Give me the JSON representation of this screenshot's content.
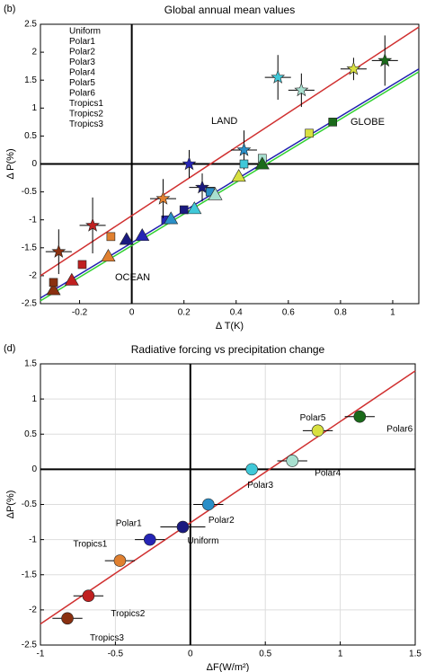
{
  "chart_data": [
    {
      "type": "scatter",
      "panel": "(b)",
      "title": "Global annual mean values",
      "xlabel": "Δ T(K)",
      "ylabel": "Δ P(%)",
      "xlim": [
        -0.35,
        1.1
      ],
      "ylim": [
        -2.5,
        2.5
      ],
      "xticks": [
        -0.2,
        0,
        0.2,
        0.4,
        0.6,
        0.8,
        1
      ],
      "yticks": [
        -2.5,
        -2,
        -1.5,
        -1,
        -0.5,
        0,
        0.5,
        1,
        1.5,
        2,
        2.5
      ],
      "grid": false,
      "legend": "upper left",
      "markers": [
        "star",
        "triangle",
        "square"
      ],
      "series": [
        {
          "name": "Uniform",
          "color": "#1a1a80",
          "x": [
            0.27,
            -0.02,
            0.2
          ],
          "values": [
            -0.42,
            -1.35,
            -0.82
          ],
          "xerr": [
            0.05,
            null,
            null
          ],
          "yerr": [
            0.25,
            null,
            null
          ]
        },
        {
          "name": "Polar1",
          "color": "#2525b5",
          "x": [
            0.22,
            0.04,
            0.13
          ],
          "values": [
            0,
            -1.28,
            -1
          ],
          "xerr": [
            0.05,
            null,
            null
          ],
          "yerr": [
            0.25,
            null,
            null
          ]
        },
        {
          "name": "Polar2",
          "color": "#2a8fc8",
          "x": [
            0.43,
            0.15,
            0.3
          ],
          "values": [
            0.25,
            -0.98,
            -0.5
          ],
          "xerr": [
            0.05,
            null,
            null
          ],
          "yerr": [
            0.35,
            null,
            null
          ]
        },
        {
          "name": "Polar3",
          "color": "#40c8d8",
          "x": [
            0.56,
            0.24,
            0.43
          ],
          "values": [
            1.55,
            -0.8,
            0
          ],
          "xerr": [
            0.05,
            null,
            null
          ],
          "yerr": [
            0.4,
            null,
            null
          ]
        },
        {
          "name": "Polar4",
          "color": "#a8e0d0",
          "x": [
            0.65,
            0.32,
            0.5
          ],
          "values": [
            1.32,
            -0.55,
            0.1
          ],
          "xerr": [
            0.05,
            null,
            null
          ],
          "yerr": [
            0.3,
            null,
            null
          ]
        },
        {
          "name": "Polar5",
          "color": "#d8e040",
          "x": [
            0.85,
            0.41,
            0.68
          ],
          "values": [
            1.7,
            -0.22,
            0.55
          ],
          "xerr": [
            0.05,
            null,
            null
          ],
          "yerr": [
            0.2,
            null,
            null
          ]
        },
        {
          "name": "Polar6",
          "color": "#1a6a1a",
          "x": [
            0.97,
            0.5,
            0.77
          ],
          "values": [
            1.85,
            0,
            0.75
          ],
          "xerr": [
            0.05,
            null,
            null
          ],
          "yerr": [
            0.45,
            null,
            null
          ]
        },
        {
          "name": "Tropics1",
          "color": "#e08030",
          "x": [
            0.12,
            -0.09,
            -0.08
          ],
          "values": [
            -0.62,
            -1.65,
            -1.3
          ],
          "xerr": [
            0.05,
            null,
            null
          ],
          "yerr": [
            0.35,
            null,
            null
          ]
        },
        {
          "name": "Tropics2",
          "color": "#c02020",
          "x": [
            -0.15,
            -0.23,
            -0.19
          ],
          "values": [
            -1.1,
            -2.08,
            -1.8
          ],
          "xerr": [
            0.05,
            null,
            null
          ],
          "yerr": [
            0.5,
            null,
            null
          ]
        },
        {
          "name": "Tropics3",
          "color": "#8a3010",
          "x": [
            -0.28,
            -0.3,
            -0.3
          ],
          "values": [
            -1.57,
            -2.25,
            -2.12
          ],
          "xerr": [
            0.05,
            null,
            null
          ],
          "yerr": [
            0.4,
            null,
            null
          ]
        }
      ],
      "fits": [
        {
          "name": "LAND",
          "color": "#d03030",
          "x": [
            -0.35,
            1.1
          ],
          "values": [
            -2,
            2.45
          ]
        },
        {
          "name": "OCEAN",
          "color": "#30d030",
          "x": [
            -0.35,
            1.1
          ],
          "values": [
            -2.45,
            1.65
          ]
        },
        {
          "name": "GLOBE",
          "color": "#2020b0",
          "x": [
            -0.35,
            1.1
          ],
          "values": [
            -2.4,
            1.7
          ]
        }
      ]
    },
    {
      "type": "scatter",
      "panel": "(d)",
      "title": "Radiative forcing vs precipitation change",
      "xlabel": "ΔF(W/m²)",
      "ylabel": "ΔP(%)",
      "xlim": [
        -1,
        1.5
      ],
      "ylim": [
        -2.5,
        1.5
      ],
      "xticks": [
        -1,
        -0.5,
        0,
        0.5,
        1,
        1.5
      ],
      "yticks": [
        -2.5,
        -2,
        -1.5,
        -1,
        -0.5,
        0,
        0.5,
        1,
        1.5
      ],
      "grid": true,
      "markers": [
        "circle"
      ],
      "series": [
        {
          "name": "Uniform",
          "color": "#1a1a80",
          "x": [
            -0.05
          ],
          "values": [
            -0.82
          ],
          "xerr": [
            0.15
          ]
        },
        {
          "name": "Polar1",
          "color": "#2525b5",
          "x": [
            -0.27
          ],
          "values": [
            -1
          ],
          "xerr": [
            0.1
          ]
        },
        {
          "name": "Polar2",
          "color": "#2a8fc8",
          "x": [
            0.12
          ],
          "values": [
            -0.5
          ],
          "xerr": [
            0.1
          ]
        },
        {
          "name": "Polar3",
          "color": "#40c8d8",
          "x": [
            0.41
          ],
          "values": [
            0
          ],
          "xerr": [
            0.1
          ]
        },
        {
          "name": "Polar4",
          "color": "#a8e0d0",
          "x": [
            0.68
          ],
          "values": [
            0.12
          ],
          "xerr": [
            0.1
          ]
        },
        {
          "name": "Polar5",
          "color": "#d8e040",
          "x": [
            0.85
          ],
          "values": [
            0.55
          ],
          "xerr": [
            0.1
          ]
        },
        {
          "name": "Polar6",
          "color": "#1a6a1a",
          "x": [
            1.13
          ],
          "values": [
            0.75
          ],
          "xerr": [
            0.1
          ]
        },
        {
          "name": "Tropics1",
          "color": "#e08030",
          "x": [
            -0.47
          ],
          "values": [
            -1.3
          ],
          "xerr": [
            0.1
          ]
        },
        {
          "name": "Tropics2",
          "color": "#c02020",
          "x": [
            -0.68
          ],
          "values": [
            -1.8
          ],
          "xerr": [
            0.1
          ]
        },
        {
          "name": "Tropics3",
          "color": "#8a3010",
          "x": [
            -0.82
          ],
          "values": [
            -2.12
          ],
          "xerr": [
            0.1
          ]
        }
      ],
      "fits": [
        {
          "color": "#d03030",
          "x": [
            -1,
            1.5
          ],
          "values": [
            -2.2,
            1.4
          ]
        }
      ]
    }
  ]
}
